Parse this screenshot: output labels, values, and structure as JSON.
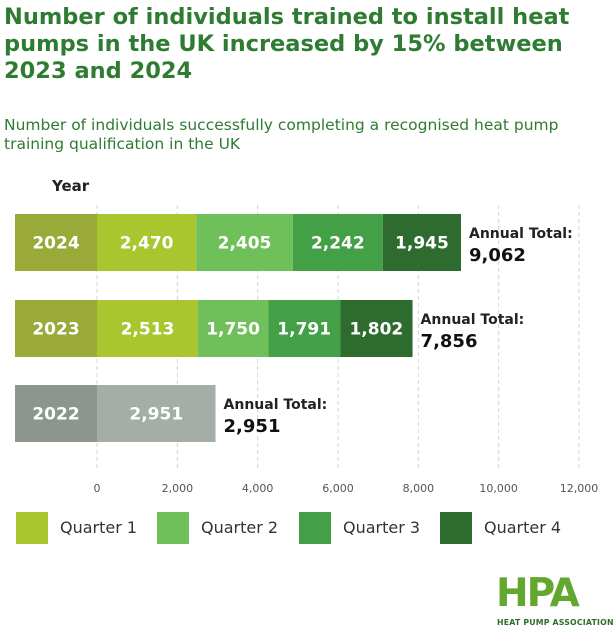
{
  "title": "Number of individuals trained to install heat pumps in the UK increased by 15% between 2023 and 2024",
  "subtitle": "Number of individuals successfully completing a recognised heat pump training qualification in the UK",
  "chart_data": {
    "type": "bar",
    "orientation": "horizontal",
    "stacked": true,
    "y_axis_label": "Year",
    "categories": [
      "2024",
      "2023",
      "2022"
    ],
    "series": [
      {
        "name": "Quarter 1",
        "values": [
          2470,
          2513,
          2951
        ]
      },
      {
        "name": "Quarter 2",
        "values": [
          2405,
          1750,
          null
        ]
      },
      {
        "name": "Quarter 3",
        "values": [
          2242,
          1791,
          null
        ]
      },
      {
        "name": "Quarter 4",
        "values": [
          1945,
          1802,
          null
        ]
      }
    ],
    "value_labels": [
      [
        "2,470",
        "2,405",
        "2,242",
        "1,945"
      ],
      [
        "2,513",
        "1,750",
        "1,791",
        "1,802"
      ],
      [
        "2,951"
      ]
    ],
    "totals_label": "Annual Total:",
    "totals": [
      "9,062",
      "7,856",
      "2,951"
    ],
    "xlim": [
      0,
      12000
    ],
    "x_ticks": [
      0,
      2000,
      4000,
      6000,
      8000,
      10000,
      12000
    ],
    "x_tick_labels": [
      "0",
      "2,000",
      "4,000",
      "6,000",
      "8,000",
      "10,000",
      "12,000"
    ],
    "grid": true,
    "colors": {
      "quarter_1": "#a9c62f",
      "quarter_2": "#6fc05a",
      "quarter_3": "#43a047",
      "quarter_4": "#2e6b2e",
      "year_box_2024": "#9aaa38",
      "year_box_2023": "#9aaa38",
      "year_box_2022": "#8d968e",
      "bar_2022": "#a4aea6"
    }
  },
  "legend": [
    {
      "label": "Quarter 1",
      "color": "#a9c62f"
    },
    {
      "label": "Quarter 2",
      "color": "#6fc05a"
    },
    {
      "label": "Quarter 3",
      "color": "#43a047"
    },
    {
      "label": "Quarter 4",
      "color": "#2e6b2e"
    }
  ],
  "logo": {
    "letters": "HPA",
    "caption": "HEAT PUMP ASSOCIATION",
    "icon": "heat-pump-association-logo"
  }
}
